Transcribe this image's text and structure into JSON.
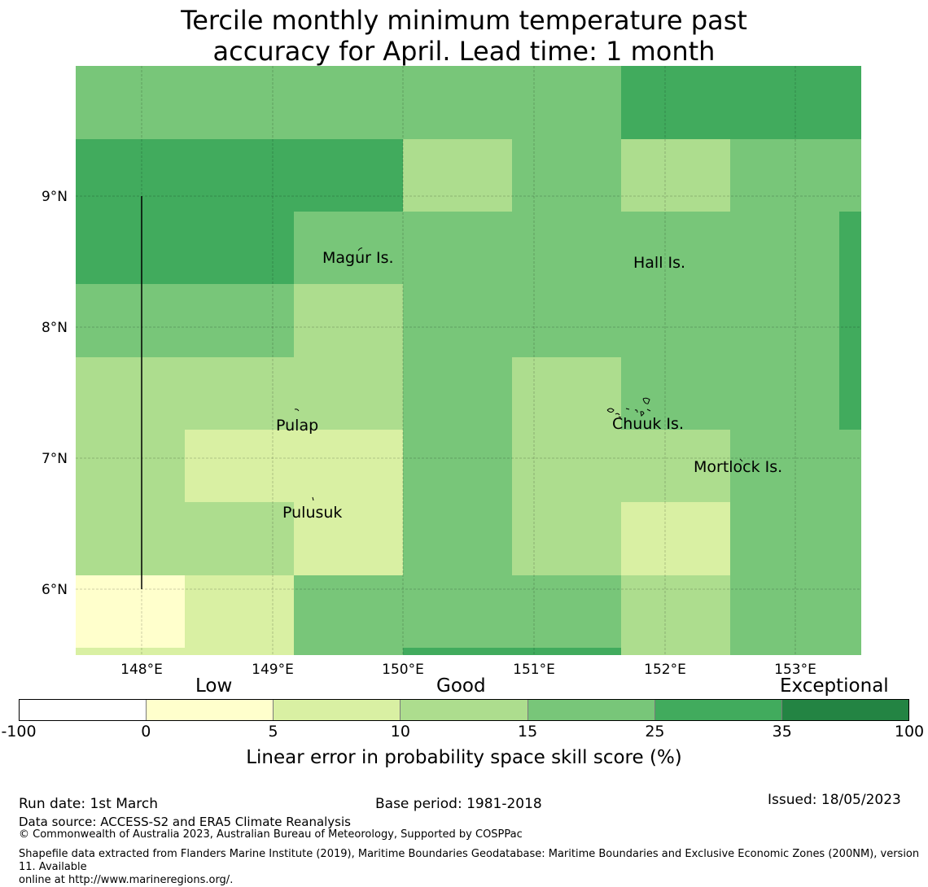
{
  "title": {
    "line1": "Tercile monthly minimum temperature past",
    "line2": "accuracy for April. Lead time: 1 month"
  },
  "map": {
    "lon_labels": [
      "148°E",
      "149°E",
      "150°E",
      "151°E",
      "152°E",
      "153°E"
    ],
    "lat_labels": [
      "9°N",
      "8°N",
      "7°N",
      "6°N"
    ],
    "places": [
      {
        "name": "Magur Is."
      },
      {
        "name": "Hall Is."
      },
      {
        "name": "Pulap"
      },
      {
        "name": "Chuuk Is."
      },
      {
        "name": "Mortlock Is."
      },
      {
        "name": "Pulusuk"
      }
    ],
    "color_scale": [
      "#ffffff",
      "#ffffcc",
      "#d9f0a3",
      "#addd8e",
      "#78c679",
      "#41ab5d",
      "#238443"
    ]
  },
  "colorbar": {
    "categories": [
      "Low",
      "Good",
      "Exceptional"
    ],
    "ticks": [
      "-100",
      "0",
      "5",
      "10",
      "15",
      "25",
      "35",
      "100"
    ],
    "colors": [
      "#ffffff",
      "#ffffcc",
      "#d9f0a3",
      "#addd8e",
      "#78c679",
      "#41ab5d",
      "#238443"
    ],
    "label": "Linear error in probability space skill score (%)"
  },
  "footer": {
    "run_date": "Run date: 1st March",
    "base_period": "Base period: 1981-2018",
    "issued": "Issued: 18/05/2023",
    "data_source": "Data source: ACCESS-S2 and ERA5 Climate Reanalysis",
    "copyright": "© Commonwealth of Australia 2023, Australian Bureau of Meteorology, Supported by COSPPac",
    "shapefile_line1": "Shapefile data extracted from Flanders Marine Institute (2019), Maritime Boundaries Geodatabase: Maritime Boundaries and Exclusive Economic Zones (200NM), version 11. Available",
    "shapefile_line2": "online at http://www.marineregions.org/."
  }
}
